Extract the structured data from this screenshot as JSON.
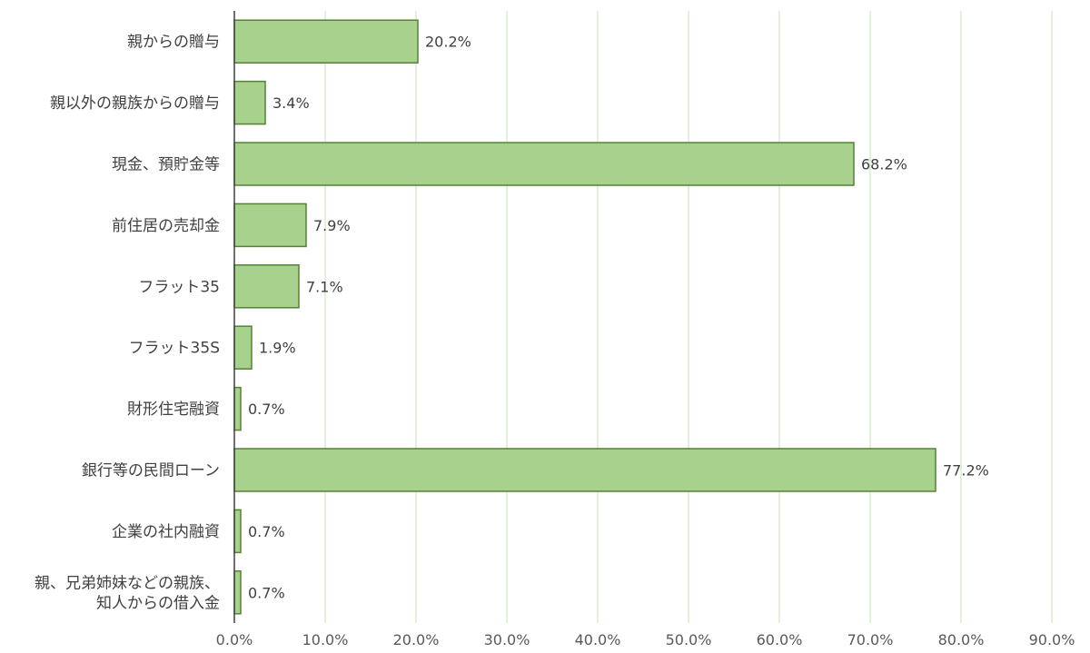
{
  "chart_data": {
    "type": "bar",
    "orientation": "horizontal",
    "categories": [
      [
        "親からの贈与"
      ],
      [
        "親以外の親族からの贈与"
      ],
      [
        "現金、預貯金等"
      ],
      [
        "前住居の売却金"
      ],
      [
        "フラット35"
      ],
      [
        "フラット35S"
      ],
      [
        "財形住宅融資"
      ],
      [
        "銀行等の民間ローン"
      ],
      [
        "企業の社内融資"
      ],
      [
        "親、兄弟姉妹などの親族、",
        "知人からの借入金"
      ]
    ],
    "values": [
      20.2,
      3.4,
      68.2,
      7.9,
      7.1,
      1.9,
      0.7,
      77.2,
      0.7,
      0.7
    ],
    "value_labels": [
      "20.2%",
      "3.4%",
      "68.2%",
      "7.9%",
      "7.1%",
      "1.9%",
      "0.7%",
      "77.2%",
      "0.7%",
      "0.7%"
    ],
    "xlim": [
      0,
      90
    ],
    "xticks": [
      0,
      10,
      20,
      30,
      40,
      50,
      60,
      70,
      80,
      90
    ],
    "xtick_labels": [
      "0.0%",
      "10.0%",
      "20.0%",
      "30.0%",
      "40.0%",
      "50.0%",
      "60.0%",
      "70.0%",
      "80.0%",
      "90.0%"
    ],
    "grid": "vertical",
    "legend": "none",
    "colors": {
      "bar_fill": "#a9d18e",
      "bar_stroke": "#548235",
      "gridline": "#c5e0b4",
      "axis": "#404040"
    }
  }
}
